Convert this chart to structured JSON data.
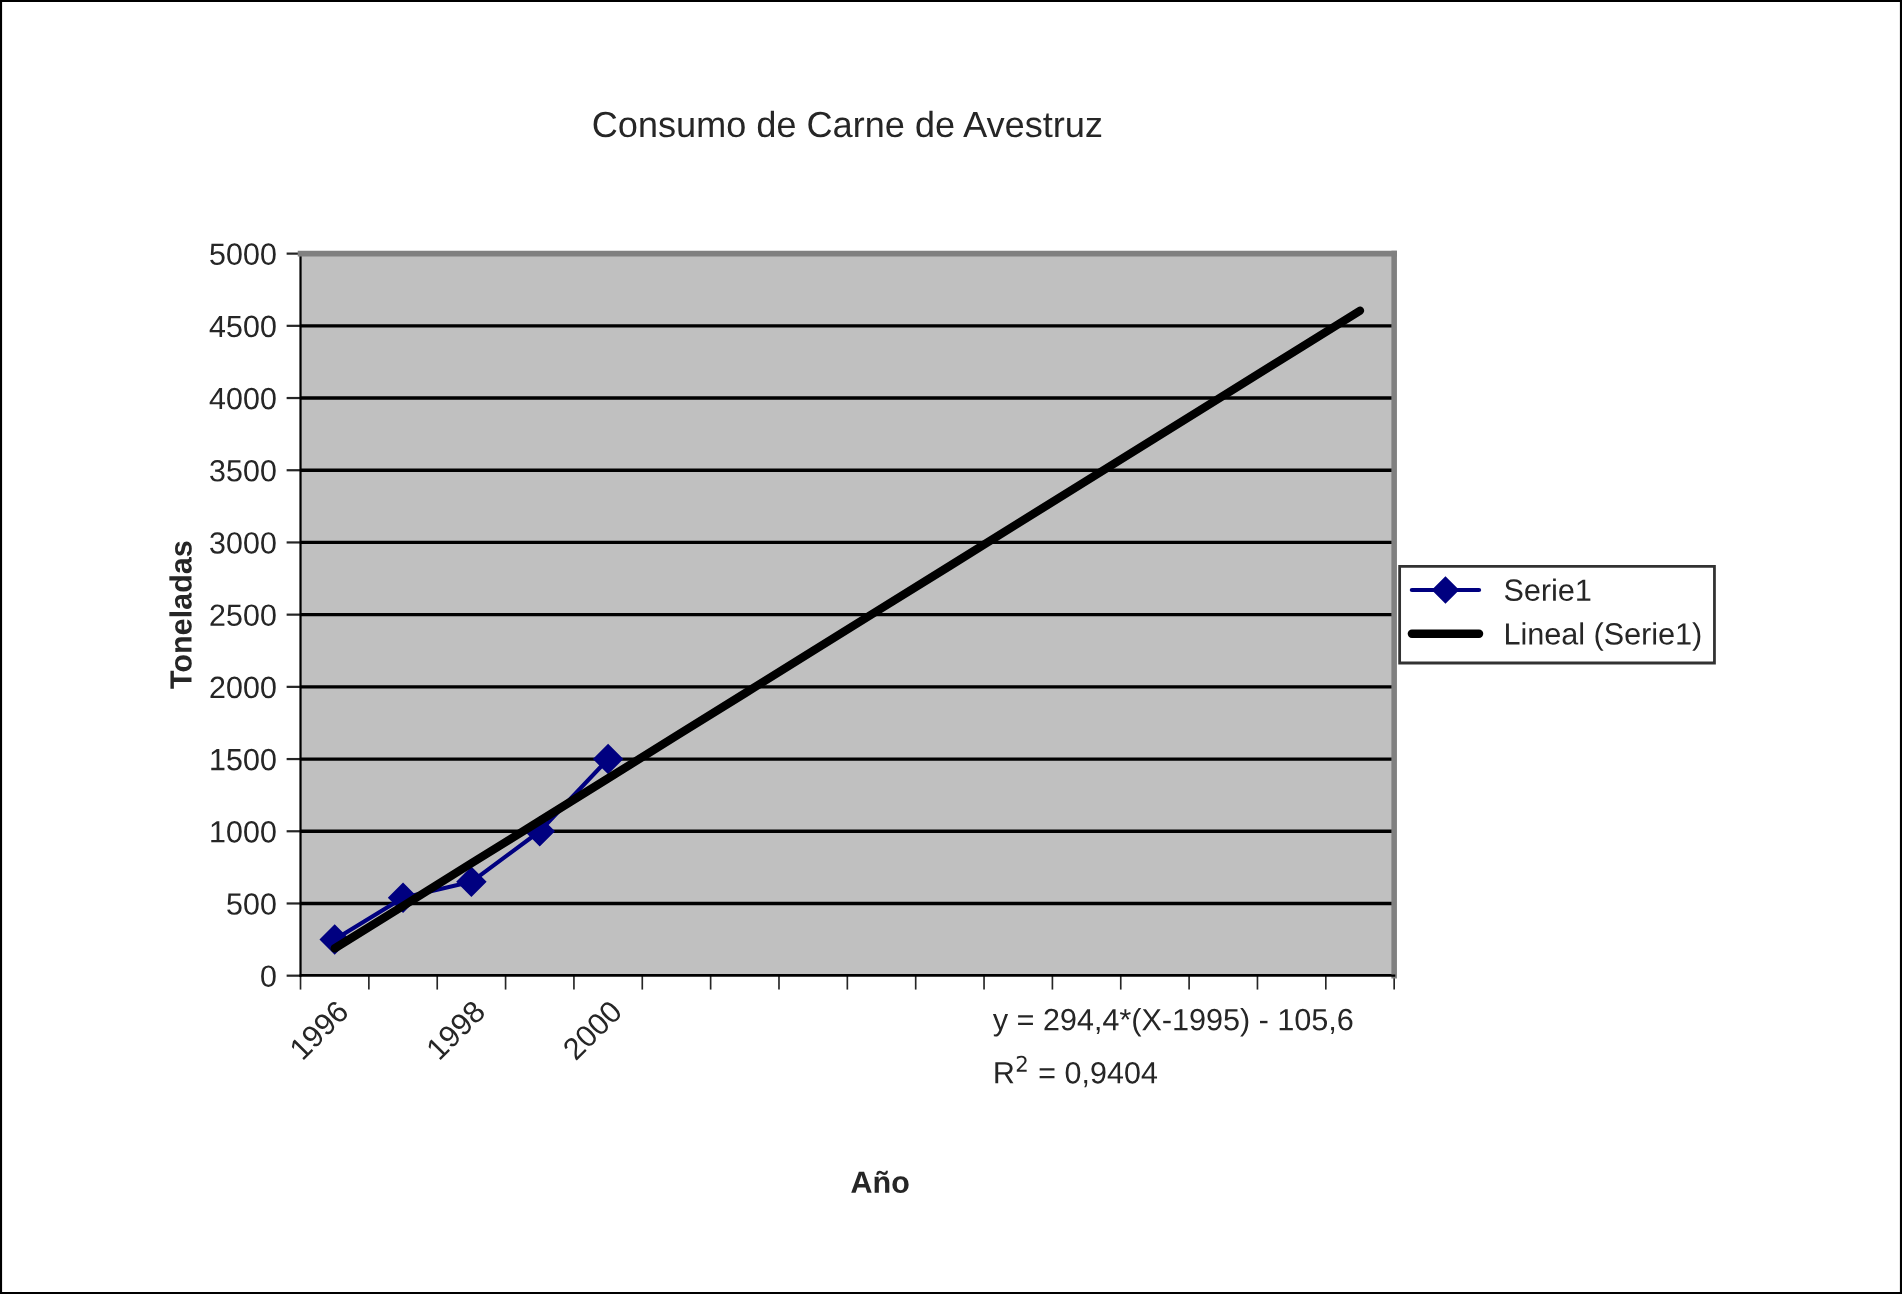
{
  "chart_data": {
    "type": "line",
    "title": "Consumo de Carne de Avestruz",
    "xlabel": "Año",
    "ylabel": "Toneladas",
    "categories": [
      "1996",
      null,
      "1998",
      null,
      "2000",
      null,
      null,
      null,
      null,
      null,
      null,
      null,
      null,
      null,
      null,
      null
    ],
    "series": [
      {
        "name": "Serie1",
        "color": "#000080",
        "marker": "diamond",
        "values": [
          250,
          540,
          650,
          1000,
          1500,
          null,
          null,
          null,
          null,
          null,
          null,
          null,
          null,
          null,
          null,
          null
        ]
      },
      {
        "name": "Lineal (Serie1)",
        "color": "#000000",
        "marker": "none",
        "values": [
          189,
          483,
          778,
          1072,
          1366,
          1661,
          1955,
          2250,
          2544,
          2838,
          3133,
          3427,
          3722,
          4016,
          4310,
          4605
        ]
      }
    ],
    "ylim": [
      0,
      5000
    ],
    "yticks": [
      0,
      500,
      1000,
      1500,
      2000,
      2500,
      3000,
      3500,
      4000,
      4500,
      5000
    ],
    "grid": "y",
    "legend": "right",
    "line_style": "solid",
    "annotations": [
      "y = 294,4*(X-1995) - 105,6",
      "R$^{2}$ = 0,9404"
    ]
  }
}
